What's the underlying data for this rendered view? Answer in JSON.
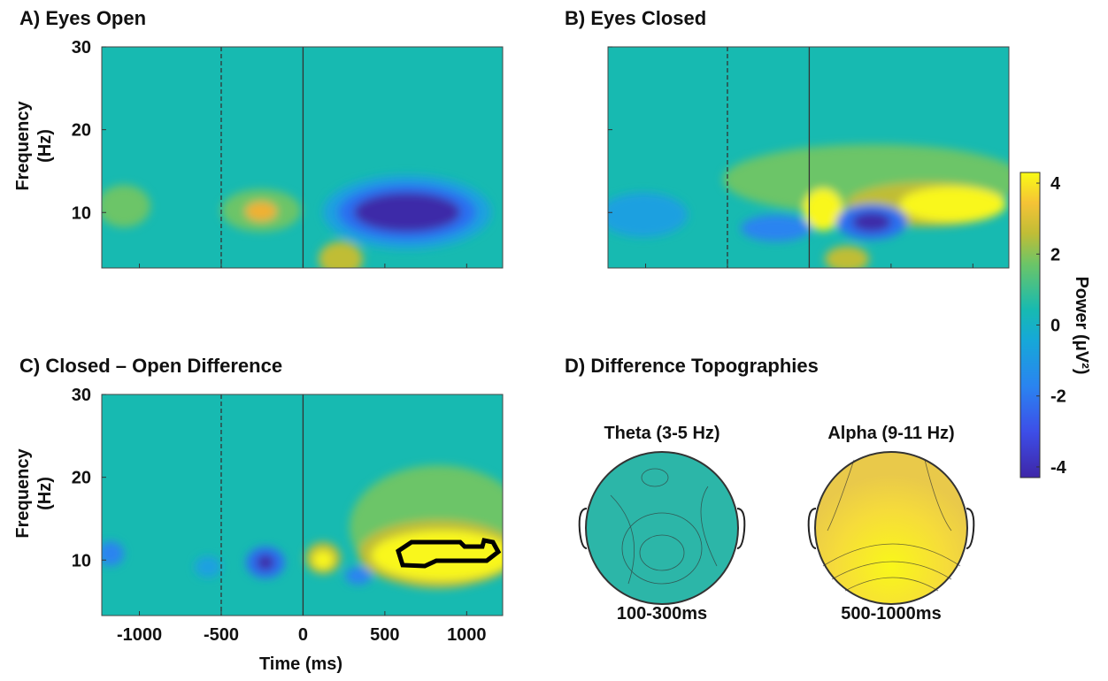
{
  "panels": [
    {
      "title": "A) Eyes Open"
    },
    {
      "title": "B) Eyes Closed"
    },
    {
      "title": "C) Closed – Open Difference"
    },
    {
      "title": "D) Difference Topographies"
    }
  ],
  "axes": {
    "y_label": [
      "Frequency",
      "(Hz)"
    ],
    "x_label": "Time (ms)",
    "xlim": [
      -1230,
      1220
    ],
    "xticks": [
      -1000,
      -500,
      0,
      500,
      1000
    ],
    "ylim": [
      3.3,
      30
    ],
    "yticks": [
      10,
      20,
      30
    ],
    "event_lines": [
      -500,
      0
    ]
  },
  "colorbar": {
    "label": "Power (μV²)",
    "lim": [
      -4.3,
      4.3
    ],
    "ticks": [
      -4,
      -2,
      0,
      2,
      4
    ]
  },
  "topographies": [
    {
      "band": "Theta (3-5 Hz)",
      "window": "100-300ms"
    },
    {
      "band": "Alpha (9-11 Hz)",
      "window": "500-1000ms"
    }
  ]
}
